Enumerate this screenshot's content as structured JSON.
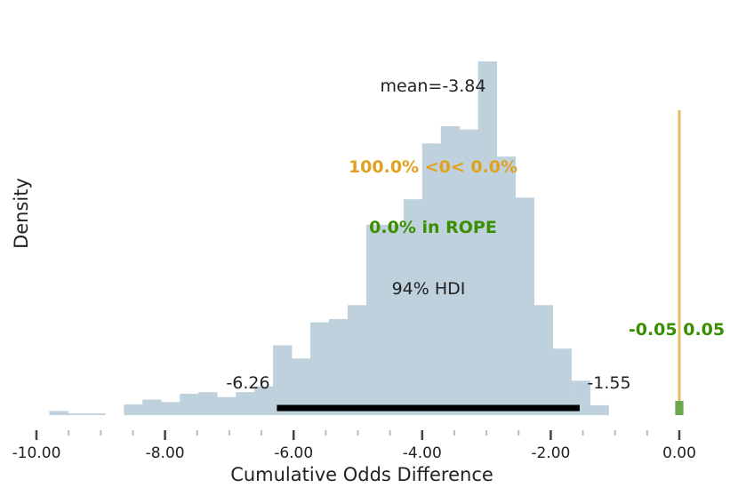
{
  "chart_data": {
    "type": "bar",
    "xlabel": "Cumulative Odds Difference",
    "ylabel": "Density",
    "xlim": [
      -10.1,
      0.35
    ],
    "ylim": [
      0,
      0.47
    ],
    "x_ticks": [
      -10.0,
      -8.0,
      -6.0,
      -4.0,
      -2.0,
      0.0
    ],
    "x_tick_labels": [
      "-10.00",
      "-8.00",
      "-6.00",
      "-4.00",
      "-2.00",
      "0.00"
    ],
    "bin_width": 0.29,
    "bins": [
      {
        "left": -9.8,
        "density": 0.005
      },
      {
        "left": -9.51,
        "density": 0.002
      },
      {
        "left": -9.22,
        "density": 0.002
      },
      {
        "left": -8.93,
        "density": 0.0
      },
      {
        "left": -8.64,
        "density": 0.013
      },
      {
        "left": -8.35,
        "density": 0.019
      },
      {
        "left": -8.06,
        "density": 0.016
      },
      {
        "left": -7.77,
        "density": 0.026
      },
      {
        "left": -7.48,
        "density": 0.028
      },
      {
        "left": -7.19,
        "density": 0.022
      },
      {
        "left": -6.9,
        "density": 0.028
      },
      {
        "left": -6.61,
        "density": 0.035
      },
      {
        "left": -6.32,
        "density": 0.085
      },
      {
        "left": -6.03,
        "density": 0.069
      },
      {
        "left": -5.74,
        "density": 0.113
      },
      {
        "left": -5.45,
        "density": 0.117
      },
      {
        "left": -5.16,
        "density": 0.134
      },
      {
        "left": -4.87,
        "density": 0.232
      },
      {
        "left": -4.58,
        "density": 0.232
      },
      {
        "left": -4.29,
        "density": 0.263
      },
      {
        "left": -4.0,
        "density": 0.331
      },
      {
        "left": -3.71,
        "density": 0.352
      },
      {
        "left": -3.42,
        "density": 0.348
      },
      {
        "left": -3.13,
        "density": 0.431
      },
      {
        "left": -2.84,
        "density": 0.315
      },
      {
        "left": -2.55,
        "density": 0.265
      },
      {
        "left": -2.26,
        "density": 0.134
      },
      {
        "left": -1.97,
        "density": 0.081
      },
      {
        "left": -1.68,
        "density": 0.042
      },
      {
        "left": -1.39,
        "density": 0.012
      }
    ],
    "hdi": {
      "low": -6.26,
      "high": -1.55,
      "label": "94% HDI",
      "low_label": "-6.26",
      "high_label": "-1.55"
    },
    "mean_label": "mean=-3.84",
    "ref_value": 0.0,
    "ref_label": "100.0% <0< 0.0%",
    "rope": {
      "low": -0.05,
      "high": 0.05,
      "label": "-0.05 0.05",
      "in_rope_label": "0.0% in ROPE"
    },
    "colors": {
      "bars": "#bfd1dd",
      "hdi": "#000000",
      "ref_line": "#e5b96a",
      "ref_text": "#e0a21e",
      "rope": "#6aa84f",
      "rope_text": "#3a8f00",
      "axis": "#555555",
      "text": "#222222"
    }
  }
}
